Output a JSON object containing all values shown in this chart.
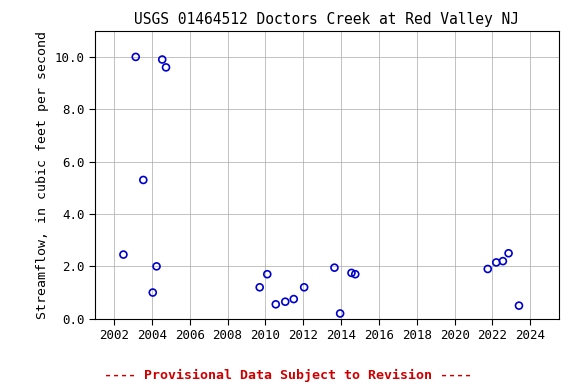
{
  "title": "USGS 01464512 Doctors Creek at Red Valley NJ",
  "ylabel": "Streamflow, in cubic feet per second",
  "xlim": [
    2001.0,
    2025.5
  ],
  "ylim": [
    0.0,
    11.0
  ],
  "xticks": [
    2002,
    2004,
    2006,
    2008,
    2010,
    2012,
    2014,
    2016,
    2018,
    2020,
    2022,
    2024
  ],
  "yticks": [
    0.0,
    2.0,
    4.0,
    6.0,
    8.0,
    10.0
  ],
  "x_data": [
    2002.5,
    2003.15,
    2003.55,
    2004.05,
    2004.25,
    2004.55,
    2004.75,
    2009.7,
    2010.1,
    2010.55,
    2011.05,
    2011.5,
    2012.05,
    2013.65,
    2013.95,
    2014.55,
    2014.75,
    2021.75,
    2022.2,
    2022.55,
    2022.85,
    2023.4
  ],
  "y_data": [
    2.45,
    10.0,
    5.3,
    1.0,
    2.0,
    9.9,
    9.6,
    1.2,
    1.7,
    0.55,
    0.65,
    0.75,
    1.2,
    1.95,
    0.2,
    1.75,
    1.7,
    1.9,
    2.15,
    2.2,
    2.5,
    0.5
  ],
  "marker_color": "#0000CC",
  "marker_facecolor": "none",
  "marker_style": "o",
  "marker_size": 5,
  "marker_linewidth": 1.2,
  "grid_color": "#aaaaaa",
  "grid_linestyle": "-",
  "grid_linewidth": 0.5,
  "background_color": "#ffffff",
  "title_fontsize": 10.5,
  "axis_label_fontsize": 9.5,
  "tick_fontsize": 9,
  "footnote": "---- Provisional Data Subject to Revision ----",
  "footnote_color": "#cc0000",
  "footnote_fontsize": 9.5
}
